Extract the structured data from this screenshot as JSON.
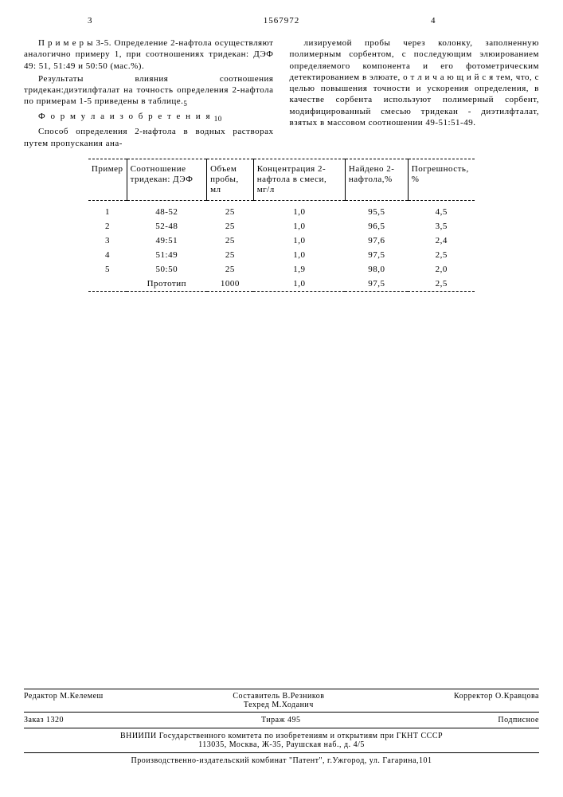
{
  "header": {
    "pageLeft": "3",
    "patentNumber": "1567972",
    "pageRight": "4"
  },
  "leftCol": {
    "p1": "П р и м е р ы  3-5. Определение 2-нафтола осуществляют аналогично примеру 1, при соотношениях тридекан: ДЭФ 49: 51, 51:49 и 50:50 (мас.%).",
    "p2": "Результаты влияния соотношения тридекан:диэтилфталат на точность определения 2-нафтола по примерам 1-5 приведены в таблице.",
    "formula": "Ф о р м у л а  и з о б р е т е н и я",
    "p3": "Способ определения 2-нафтола в водных растворах путем пропускания ана-"
  },
  "rightCol": {
    "p1": "лизируемой пробы через колонку, заполненную полимерным сорбентом, с последующим элюированием определяемого компонента и его фотометрическим детектированием в элюате, о т л и ч а ю щ и й с я тем, что, с целью повышения точности и ускорения определения, в качестве сорбента используют полимерный сорбент, модифицированный смесью тридекан - диэтилфталат, взятых в массовом соотношении 49-51:51-49."
  },
  "table": {
    "headers": {
      "c1": "Пример",
      "c2": "Соотношение тридекан: ДЭФ",
      "c3": "Объем пробы, мл",
      "c4": "Концентрация 2-нафтола в смеси, мг/л",
      "c5": "Найдено 2-нафтола,%",
      "c6": "Погрешность, %"
    },
    "rows": [
      {
        "c1": "1",
        "c2": "48-52",
        "c3": "25",
        "c4": "1,0",
        "c5": "95,5",
        "c6": "4,5"
      },
      {
        "c1": "2",
        "c2": "52-48",
        "c3": "25",
        "c4": "1,0",
        "c5": "96,5",
        "c6": "3,5"
      },
      {
        "c1": "3",
        "c2": "49:51",
        "c3": "25",
        "c4": "1,0",
        "c5": "97,6",
        "c6": "2,4"
      },
      {
        "c1": "4",
        "c2": "51:49",
        "c3": "25",
        "c4": "1,0",
        "c5": "97,5",
        "c6": "2,5"
      },
      {
        "c1": "5",
        "c2": "50:50",
        "c3": "25",
        "c4": "1,9",
        "c5": "98,0",
        "c6": "2,0"
      },
      {
        "c1": "",
        "c2": "Прототип",
        "c3": "1000",
        "c4": "1,0",
        "c5": "97,5",
        "c6": "2,5"
      }
    ]
  },
  "footer": {
    "compiler": "Составитель В.Резников",
    "editor": "Редактор М.Келемеш",
    "techred": "Техред М.Ходанич",
    "corrector": "Корректор О.Кравцова",
    "order": "Заказ 1320",
    "circulation": "Тираж 495",
    "subscription": "Подписное",
    "institute": "ВНИИПИ Государственного комитета по изобретениям и открытиям при ГКНТ СССР",
    "instAddress": "113035, Москва, Ж-35, Раушская наб., д. 4/5",
    "productionAddress": "Производственно-издательский комбинат \"Патент\", г.Ужгород, ул. Гагарина,101"
  },
  "lineNums": {
    "n5": "5",
    "n10": "10"
  }
}
